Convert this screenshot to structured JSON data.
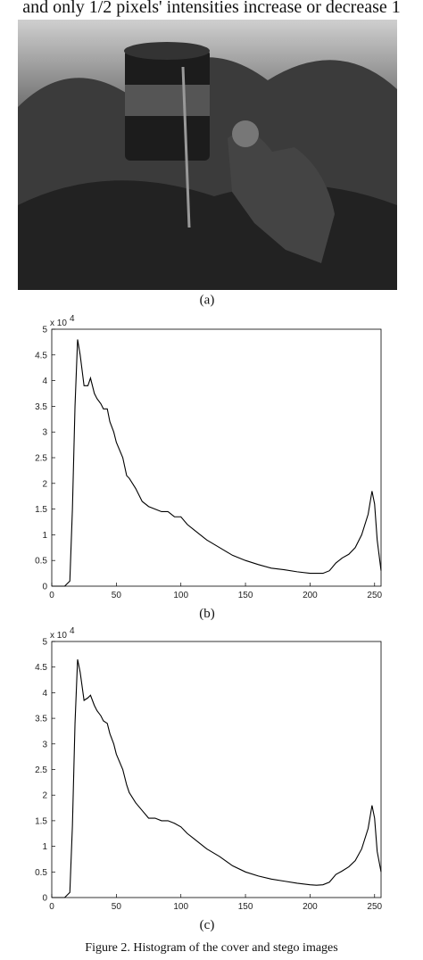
{
  "header_text": "and only 1/2 pixels' intensities increase or decrease 1",
  "image_caption": "(a)",
  "figure_caption": "Figure 2.    Histogram of the cover and stego images",
  "chart_data": [
    {
      "type": "line",
      "caption": "(b)",
      "multiplier_base": "x 10",
      "multiplier_exponent": "4",
      "color": "#000000",
      "xlim": [
        0,
        255
      ],
      "xticks": [
        0,
        50,
        100,
        150,
        200,
        250
      ],
      "ylim": [
        0,
        5
      ],
      "yticks": [
        0,
        0.5,
        1,
        1.5,
        2,
        2.5,
        3,
        3.5,
        4,
        4.5,
        5
      ],
      "x": [
        0,
        10,
        14,
        16,
        18,
        20,
        22,
        25,
        28,
        30,
        33,
        35,
        38,
        40,
        43,
        45,
        48,
        50,
        55,
        58,
        60,
        65,
        70,
        75,
        80,
        85,
        90,
        95,
        100,
        105,
        110,
        115,
        120,
        130,
        140,
        150,
        160,
        170,
        180,
        190,
        200,
        205,
        210,
        215,
        220,
        225,
        230,
        235,
        240,
        245,
        248,
        250,
        252,
        255
      ],
      "values": [
        0,
        0,
        0.1,
        1.5,
        3.5,
        4.8,
        4.5,
        3.9,
        3.9,
        4.05,
        3.75,
        3.65,
        3.55,
        3.45,
        3.45,
        3.2,
        3.0,
        2.8,
        2.5,
        2.15,
        2.1,
        1.9,
        1.65,
        1.55,
        1.5,
        1.45,
        1.45,
        1.35,
        1.35,
        1.2,
        1.1,
        1.0,
        0.9,
        0.75,
        0.6,
        0.5,
        0.42,
        0.35,
        0.32,
        0.28,
        0.25,
        0.25,
        0.25,
        0.3,
        0.45,
        0.55,
        0.62,
        0.75,
        1.0,
        1.4,
        1.85,
        1.6,
        0.9,
        0.3
      ]
    },
    {
      "type": "line",
      "caption": "(c)",
      "multiplier_base": "x 10",
      "multiplier_exponent": "4",
      "color": "#000000",
      "xlim": [
        0,
        255
      ],
      "xticks": [
        0,
        50,
        100,
        150,
        200,
        250
      ],
      "ylim": [
        0,
        5
      ],
      "yticks": [
        0,
        0.5,
        1,
        1.5,
        2,
        2.5,
        3,
        3.5,
        4,
        4.5,
        5
      ],
      "x": [
        0,
        10,
        14,
        16,
        18,
        20,
        22,
        25,
        28,
        30,
        33,
        35,
        38,
        40,
        43,
        45,
        48,
        50,
        55,
        58,
        60,
        65,
        70,
        75,
        80,
        85,
        90,
        95,
        100,
        105,
        110,
        115,
        120,
        130,
        140,
        150,
        160,
        170,
        180,
        190,
        200,
        205,
        210,
        215,
        220,
        225,
        230,
        235,
        240,
        245,
        248,
        250,
        252,
        255
      ],
      "values": [
        0,
        0,
        0.1,
        1.4,
        3.4,
        4.65,
        4.4,
        3.85,
        3.9,
        3.95,
        3.75,
        3.65,
        3.55,
        3.45,
        3.4,
        3.2,
        3.0,
        2.8,
        2.5,
        2.2,
        2.05,
        1.85,
        1.7,
        1.55,
        1.55,
        1.5,
        1.5,
        1.45,
        1.38,
        1.25,
        1.15,
        1.05,
        0.95,
        0.8,
        0.62,
        0.5,
        0.42,
        0.36,
        0.32,
        0.28,
        0.25,
        0.24,
        0.25,
        0.3,
        0.45,
        0.52,
        0.6,
        0.72,
        0.95,
        1.35,
        1.8,
        1.55,
        0.9,
        0.5
      ]
    }
  ]
}
